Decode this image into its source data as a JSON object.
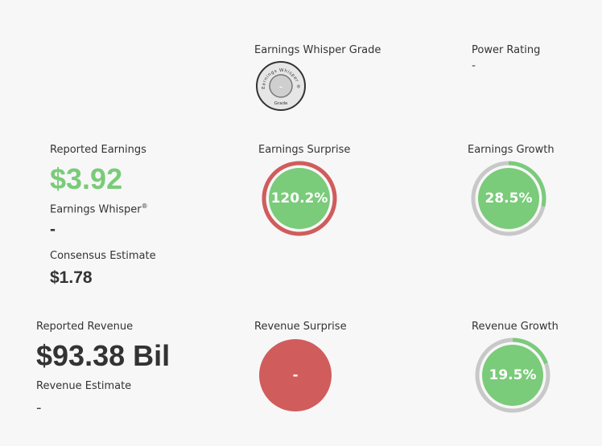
{
  "colors": {
    "green": "#7acb7a",
    "red": "#d15c5c",
    "track": "#c8c8c8",
    "text": "#333333"
  },
  "grade": {
    "label": "Earnings Whisper Grade",
    "badge_arc_text": "Earnings Whisper ®",
    "badge_bottom_text": "Grade",
    "value": "-"
  },
  "power_rating": {
    "label": "Power Rating",
    "value": "-"
  },
  "earnings": {
    "reported_label": "Reported Earnings",
    "reported_value": "$3.92",
    "whisper_label": "Earnings Whisper",
    "whisper_reg": "®",
    "whisper_value": "-",
    "consensus_label": "Consensus Estimate",
    "consensus_value": "$1.78"
  },
  "earnings_surprise": {
    "label": "Earnings Surprise",
    "value": "120.2%",
    "ring_fraction": 1.0
  },
  "earnings_growth": {
    "label": "Earnings Growth",
    "value": "28.5%",
    "ring_fraction": 0.285
  },
  "revenue": {
    "reported_label": "Reported Revenue",
    "reported_value": "$93.38 Bil",
    "estimate_label": "Revenue Estimate",
    "estimate_value": "-"
  },
  "revenue_surprise": {
    "label": "Revenue Surprise",
    "value": "-"
  },
  "revenue_growth": {
    "label": "Revenue Growth",
    "value": "19.5%",
    "ring_fraction": 0.195
  }
}
